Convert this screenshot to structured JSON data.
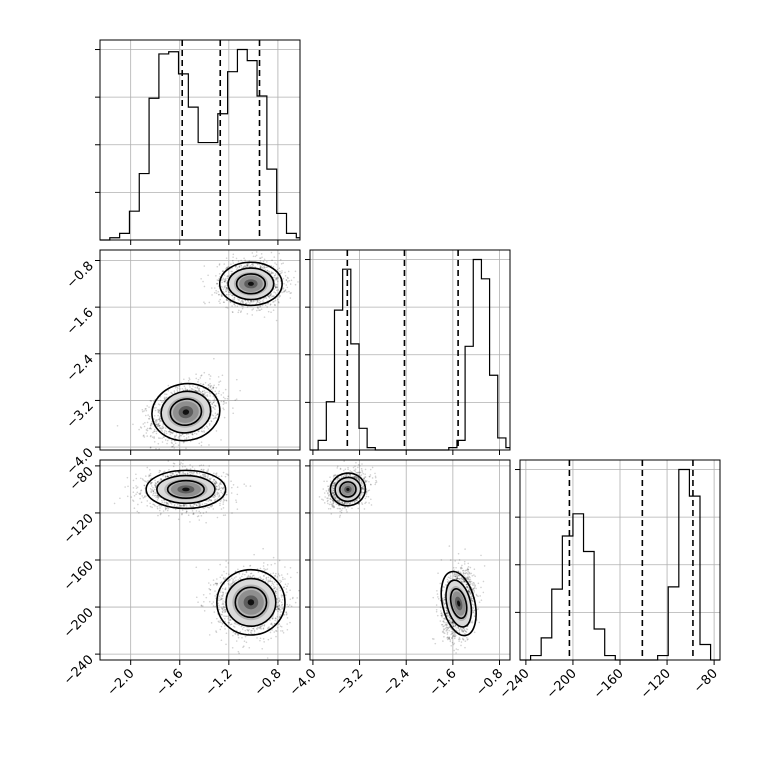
{
  "chart_data": {
    "type": "corner",
    "grid": true,
    "parameters": [
      {
        "key": "p0",
        "range": [
          -2.25,
          -0.62
        ],
        "ticks": [
          -2.0,
          -1.6,
          -1.2,
          -0.8
        ],
        "tick_labels": [
          "−2.0",
          "−1.6",
          "−1.2",
          "−0.8"
        ],
        "quantiles": [
          -1.58,
          -1.27,
          -0.95
        ],
        "hist_edges": [
          -2.25,
          -2.17,
          -2.09,
          -2.01,
          -1.93,
          -1.85,
          -1.77,
          -1.69,
          -1.61,
          -1.53,
          -1.45,
          -1.37,
          -1.29,
          -1.21,
          -1.13,
          -1.05,
          -0.97,
          -0.89,
          -0.81,
          -0.73,
          -0.65,
          -0.62
        ],
        "hist_counts": [
          0.0,
          0.01,
          0.03,
          0.13,
          0.3,
          0.64,
          0.84,
          0.85,
          0.75,
          0.6,
          0.44,
          0.44,
          0.57,
          0.76,
          0.86,
          0.81,
          0.65,
          0.32,
          0.12,
          0.03,
          0.01
        ]
      },
      {
        "key": "p1",
        "range": [
          -4.05,
          -0.62
        ],
        "ticks": [
          -4.0,
          -3.2,
          -2.4,
          -1.6,
          -0.8
        ],
        "tick_labels": [
          "−4.0",
          "−3.2",
          "−2.4",
          "−1.6",
          "−0.8"
        ],
        "quantiles": [
          -3.41,
          -2.43,
          -1.51
        ],
        "hist_edges": [
          -4.05,
          -3.91,
          -3.77,
          -3.63,
          -3.49,
          -3.35,
          -3.21,
          -3.07,
          -2.93,
          -2.79,
          -2.65,
          -2.51,
          -2.37,
          -2.23,
          -2.09,
          -1.95,
          -1.81,
          -1.67,
          -1.53,
          -1.39,
          -1.25,
          -1.11,
          -0.97,
          -0.83,
          -0.69,
          -0.62
        ],
        "hist_counts": [
          0.0,
          0.04,
          0.2,
          0.58,
          0.75,
          0.44,
          0.09,
          0.01,
          0.0,
          0.0,
          0.0,
          0.0,
          0.0,
          0.0,
          0.0,
          0.0,
          0.0,
          0.01,
          0.04,
          0.43,
          0.79,
          0.71,
          0.31,
          0.05,
          0.01
        ]
      },
      {
        "key": "p2",
        "range": [
          -245,
          -75
        ],
        "ticks": [
          -240,
          -200,
          -160,
          -120,
          -80
        ],
        "tick_labels": [
          "−240",
          "−200",
          "−160",
          "−120",
          "−80"
        ],
        "quantiles": [
          -203,
          -141,
          -98
        ],
        "hist_edges": [
          -245,
          -236,
          -227,
          -218,
          -209,
          -200,
          -191,
          -182,
          -173,
          -164,
          -155,
          -146,
          -137,
          -128,
          -119,
          -110,
          -101,
          -92,
          -83,
          -75
        ],
        "hist_counts": [
          0.0,
          0.02,
          0.1,
          0.32,
          0.56,
          0.66,
          0.49,
          0.14,
          0.02,
          0.0,
          0.0,
          0.0,
          0.0,
          0.02,
          0.33,
          0.86,
          0.74,
          0.07,
          0.0
        ]
      }
    ],
    "pairs": [
      {
        "x": "p0",
        "y": "p1",
        "modes": [
          {
            "x": -1.55,
            "y": -3.4,
            "sx": 0.12,
            "sy": 0.21,
            "rho": 0.35,
            "n": 1500
          },
          {
            "x": -1.02,
            "y": -1.2,
            "sx": 0.11,
            "sy": 0.16,
            "rho": 0.0,
            "n": 1500
          }
        ]
      },
      {
        "x": "p0",
        "y": "p2",
        "modes": [
          {
            "x": -1.55,
            "y": -100,
            "sx": 0.14,
            "sy": 7,
            "rho": 0.0,
            "n": 1500
          },
          {
            "x": -1.02,
            "y": -196,
            "sx": 0.12,
            "sy": 12,
            "rho": 0.0,
            "n": 1500
          }
        ]
      },
      {
        "x": "p1",
        "y": "p2",
        "modes": [
          {
            "x": -3.4,
            "y": -100,
            "sx": 0.13,
            "sy": 6,
            "rho": 0.3,
            "n": 1500
          },
          {
            "x": -1.5,
            "y": -197,
            "sx": 0.12,
            "sy": 12,
            "rho": 0.2,
            "n": 1500
          }
        ]
      }
    ],
    "contour_levels": [
      0.5,
      1.0,
      1.5
    ]
  }
}
